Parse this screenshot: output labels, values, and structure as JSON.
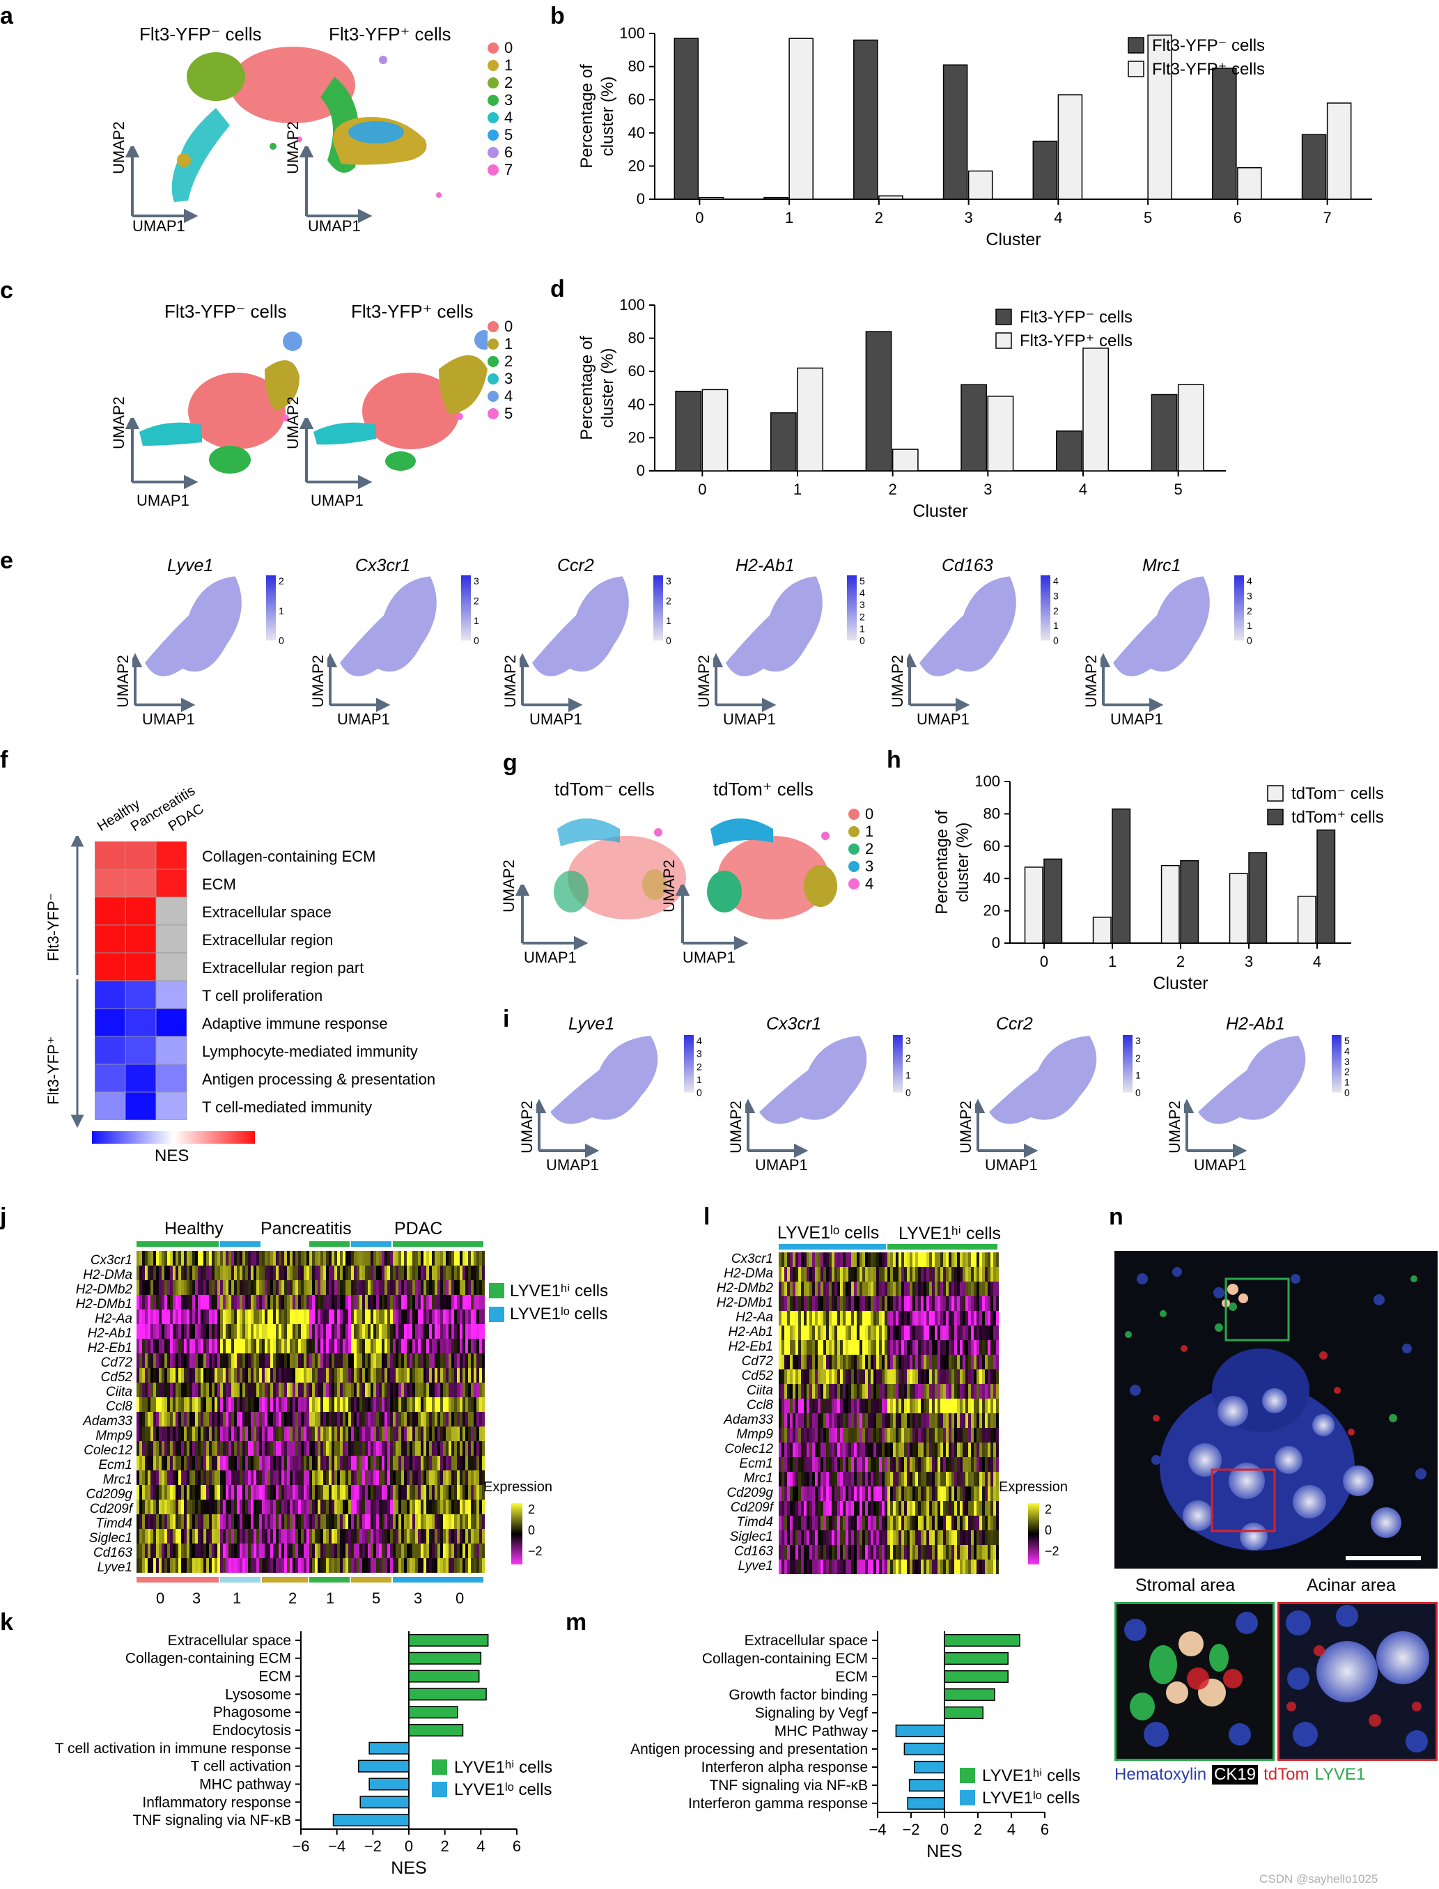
{
  "panels": {
    "a": "a",
    "b": "b",
    "c": "c",
    "d": "d",
    "e": "e",
    "f": "f",
    "g": "g",
    "h": "h",
    "i": "i",
    "j": "j",
    "k": "k",
    "l": "l",
    "m": "m",
    "n": "n"
  },
  "panel_a": {
    "left_title": "Flt3-YFP⁻ cells",
    "right_title": "Flt3-YFP⁺ cells",
    "axis_y": "UMAP2",
    "axis_x": "UMAP1",
    "clusters": [
      "0",
      "1",
      "2",
      "3",
      "4",
      "5",
      "6",
      "7"
    ],
    "cluster_colors": [
      "#f0787a",
      "#c7a92d",
      "#7cae2e",
      "#35b34a",
      "#27c0c4",
      "#2ea3e6",
      "#b18de8",
      "#f46cd0"
    ]
  },
  "panel_c": {
    "left_title": "Flt3-YFP⁻ cells",
    "right_title": "Flt3-YFP⁺ cells",
    "axis_y": "UMAP2",
    "axis_x": "UMAP1",
    "clusters": [
      "0",
      "1",
      "2",
      "3",
      "4",
      "5"
    ],
    "cluster_colors": [
      "#f0787a",
      "#b9a52b",
      "#2fb34a",
      "#27c0c4",
      "#6c9ee8",
      "#f46cd0"
    ]
  },
  "panel_e": {
    "genes": [
      "Lyve1",
      "Cx3cr1",
      "Ccr2",
      "H2-Ab1",
      "Cd163",
      "Mrc1"
    ],
    "scales": [
      [
        "2",
        "1",
        "0"
      ],
      [
        "3",
        "2",
        "1",
        "0"
      ],
      [
        "3",
        "2",
        "1",
        "0"
      ],
      [
        "5",
        "4",
        "3",
        "2",
        "1",
        "0"
      ],
      [
        "4",
        "3",
        "2",
        "1",
        "0"
      ],
      [
        "4",
        "3",
        "2",
        "1",
        "0"
      ]
    ],
    "axis_y": "UMAP2",
    "axis_x": "UMAP1"
  },
  "panel_f": {
    "columns": [
      "Healthy",
      "Pancreatitis",
      "PDAC"
    ],
    "group_top": "Flt3-YFP⁻",
    "group_bottom": "Flt3-YFP⁺",
    "terms": [
      "Collagen-containing ECM",
      "ECM",
      "Extracellular space",
      "Extracellular region",
      "Extracellular region part",
      "T cell proliferation",
      "Adaptive immune response",
      "Lymphocyte-mediated immunity",
      "Antigen processing & presentation",
      "T cell-mediated immunity"
    ],
    "cells": [
      [
        "#f25050",
        "#f25050",
        "#ff1a1a"
      ],
      [
        "#f46060",
        "#f46060",
        "#ff1a1a"
      ],
      [
        "#ff1010",
        "#ff1010",
        "#bfbfbf"
      ],
      [
        "#ff1010",
        "#ff1010",
        "#bfbfbf"
      ],
      [
        "#ff1010",
        "#ff1010",
        "#bfbfbf"
      ],
      [
        "#2b2bff",
        "#4040ff",
        "#a6a6ff"
      ],
      [
        "#1010ff",
        "#3030ff",
        "#0a0aff"
      ],
      [
        "#3a3aff",
        "#4a4aff",
        "#a0a0ff"
      ],
      [
        "#5050ff",
        "#1818ff",
        "#8080ff"
      ],
      [
        "#8a8aff",
        "#0f0fff",
        "#a8a8ff"
      ]
    ],
    "scale_label": "NES"
  },
  "panel_g": {
    "left_title": "tdTom⁻ cells",
    "right_title": "tdTom⁺ cells",
    "axis_y": "UMAP2",
    "axis_x": "UMAP1",
    "clusters": [
      "0",
      "1",
      "2",
      "3",
      "4"
    ],
    "cluster_colors": [
      "#f0787a",
      "#b9a52b",
      "#2fb37a",
      "#27a8d8",
      "#f46cd0"
    ]
  },
  "panel_i": {
    "genes": [
      "Lyve1",
      "Cx3cr1",
      "Ccr2",
      "H2-Ab1"
    ],
    "scales": [
      [
        "4",
        "3",
        "2",
        "1",
        "0"
      ],
      [
        "3",
        "2",
        "1",
        "0"
      ],
      [
        "3",
        "2",
        "1",
        "0"
      ],
      [
        "5",
        "4",
        "3",
        "2",
        "1",
        "0"
      ]
    ],
    "axis_y": "UMAP2",
    "axis_x": "UMAP1"
  },
  "panel_j": {
    "groups": [
      "Healthy",
      "Pancreatitis",
      "PDAC"
    ],
    "genes": [
      "Cx3cr1",
      "H2-DMa",
      "H2-DMb2",
      "H2-DMb1",
      "H2-Aa",
      "H2-Ab1",
      "H2-Eb1",
      "Cd72",
      "Cd52",
      "Ciita",
      "Ccl8",
      "Adam33",
      "Mmp9",
      "Colec12",
      "Ecm1",
      "Mrc1",
      "Cd209g",
      "Cd209f",
      "Timd4",
      "Siglec1",
      "Cd163",
      "Lyve1"
    ],
    "legend_hi": "LYVE1ʰⁱ cells",
    "legend_lo": "LYVE1ˡᵒ cells",
    "color_hi": "#2db34a",
    "color_lo": "#29a9e0",
    "expr_title": "Expression",
    "expr_ticks": [
      "2",
      "0",
      "−2"
    ],
    "bottom_clusters": [
      "0",
      "3",
      "1",
      "2",
      "1",
      "5",
      "3",
      "0"
    ]
  },
  "panel_l": {
    "header_lo": "LYVE1ˡᵒ cells",
    "header_hi": "LYVE1ʰⁱ cells",
    "genes": [
      "Cx3cr1",
      "H2-DMa",
      "H2-DMb2",
      "H2-DMb1",
      "H2-Aa",
      "H2-Ab1",
      "H2-Eb1",
      "Cd72",
      "Cd52",
      "Ciita",
      "Ccl8",
      "Adam33",
      "Mmp9",
      "Colec12",
      "Ecm1",
      "Mrc1",
      "Cd209g",
      "Cd209f",
      "Timd4",
      "Siglec1",
      "Cd163",
      "Lyve1"
    ],
    "expr_title": "Expression",
    "expr_ticks": [
      "2",
      "0",
      "−2"
    ]
  },
  "panel_n": {
    "left_caption": "Stromal area",
    "right_caption": "Acinar area",
    "stain_hematoxylin": "Hematoxylin",
    "stain_ck19": "CK19",
    "stain_tdtom": "tdTom",
    "stain_lyve1": "LYVE1",
    "color_hematoxylin": "#2b3fa8",
    "color_tdtom": "#d4232a",
    "color_lyve1": "#2aa84a"
  },
  "watermark": "CSDN @sayhello1025",
  "chart_data": [
    {
      "id": "b",
      "type": "bar",
      "categories": [
        "0",
        "1",
        "2",
        "3",
        "4",
        "5",
        "6",
        "7"
      ],
      "series": [
        {
          "name": "Flt3-YFP⁻ cells",
          "values": [
            97,
            1,
            96,
            81,
            35,
            0,
            79,
            39
          ],
          "color": "#4a4a4a"
        },
        {
          "name": "Flt3-YFP⁺ cells",
          "values": [
            1,
            97,
            2,
            17,
            63,
            99,
            19,
            58
          ],
          "color": "#f0f0f0"
        }
      ],
      "xlabel": "Cluster",
      "ylabel": "Percentage of cluster (%)",
      "ylim": [
        0,
        100
      ],
      "yticks": [
        "0",
        "20",
        "40",
        "60",
        "80",
        "100"
      ],
      "legend": "top-right"
    },
    {
      "id": "d",
      "type": "bar",
      "categories": [
        "0",
        "1",
        "2",
        "3",
        "4",
        "5"
      ],
      "series": [
        {
          "name": "Flt3-YFP⁻ cells",
          "values": [
            48,
            35,
            84,
            52,
            24,
            46
          ],
          "color": "#4a4a4a"
        },
        {
          "name": "Flt3-YFP⁺ cells",
          "values": [
            49,
            62,
            13,
            45,
            74,
            52
          ],
          "color": "#f0f0f0"
        }
      ],
      "xlabel": "Cluster",
      "ylabel": "Percentage of cluster (%)",
      "ylim": [
        0,
        100
      ],
      "yticks": [
        "0",
        "20",
        "40",
        "60",
        "80",
        "100"
      ],
      "legend": "top-right"
    },
    {
      "id": "h",
      "type": "bar",
      "categories": [
        "0",
        "1",
        "2",
        "3",
        "4"
      ],
      "series": [
        {
          "name": "tdTom⁻ cells",
          "values": [
            47,
            16,
            48,
            43,
            29
          ],
          "color": "#f0f0f0"
        },
        {
          "name": "tdTom⁺ cells",
          "values": [
            52,
            83,
            51,
            56,
            70
          ],
          "color": "#4a4a4a"
        }
      ],
      "xlabel": "Cluster",
      "ylabel": "Percentage of cluster (%)",
      "ylim": [
        0,
        100
      ],
      "yticks": [
        "0",
        "20",
        "40",
        "60",
        "80",
        "100"
      ],
      "legend": "top-right"
    },
    {
      "id": "k",
      "type": "bar",
      "orientation": "horizontal",
      "categories": [
        "Extracellular space",
        "Collagen-containing ECM",
        "ECM",
        "Lysosome",
        "Phagosome",
        "Endocytosis",
        "T cell activation in immune response",
        "T cell activation",
        "MHC pathway",
        "Inflammatory response",
        "TNF signaling via NF-κB"
      ],
      "values": [
        4.4,
        4.0,
        3.9,
        4.3,
        2.7,
        3.0,
        -2.2,
        -2.8,
        -2.2,
        -2.7,
        -4.2
      ],
      "groups": [
        "LYVE1ʰⁱ cells",
        "LYVE1ʰⁱ cells",
        "LYVE1ʰⁱ cells",
        "LYVE1ʰⁱ cells",
        "LYVE1ʰⁱ cells",
        "LYVE1ʰⁱ cells",
        "LYVE1ˡᵒ cells",
        "LYVE1ˡᵒ cells",
        "LYVE1ˡᵒ cells",
        "LYVE1ˡᵒ cells",
        "LYVE1ˡᵒ cells"
      ],
      "legend": [
        "LYVE1ʰⁱ cells",
        "LYVE1ˡᵒ cells"
      ],
      "xlabel": "NES",
      "xlim": [
        -6,
        6
      ],
      "xticks": [
        "−6",
        "−4",
        "−2",
        "0",
        "2",
        "4",
        "6"
      ]
    },
    {
      "id": "m",
      "type": "bar",
      "orientation": "horizontal",
      "categories": [
        "Extracellular space",
        "Collagen-containing ECM",
        "ECM",
        "Growth factor binding",
        "Signaling by Vegf",
        "MHC Pathway",
        "Antigen processing and presentation",
        "Interferon alpha response",
        "TNF signaling via NF-κB",
        "Interferon gamma response"
      ],
      "values": [
        4.5,
        3.8,
        3.8,
        3.0,
        2.3,
        -2.9,
        -2.4,
        -1.8,
        -2.1,
        -2.2
      ],
      "groups": [
        "LYVE1ʰⁱ cells",
        "LYVE1ʰⁱ cells",
        "LYVE1ʰⁱ cells",
        "LYVE1ʰⁱ cells",
        "LYVE1ʰⁱ cells",
        "LYVE1ˡᵒ cells",
        "LYVE1ˡᵒ cells",
        "LYVE1ˡᵒ cells",
        "LYVE1ˡᵒ cells",
        "LYVE1ˡᵒ cells"
      ],
      "legend": [
        "LYVE1ʰⁱ cells",
        "LYVE1ˡᵒ cells"
      ],
      "xlabel": "NES",
      "xlim": [
        -4,
        6
      ],
      "xticks": [
        "−4",
        "−2",
        "0",
        "2",
        "4",
        "6"
      ]
    }
  ]
}
